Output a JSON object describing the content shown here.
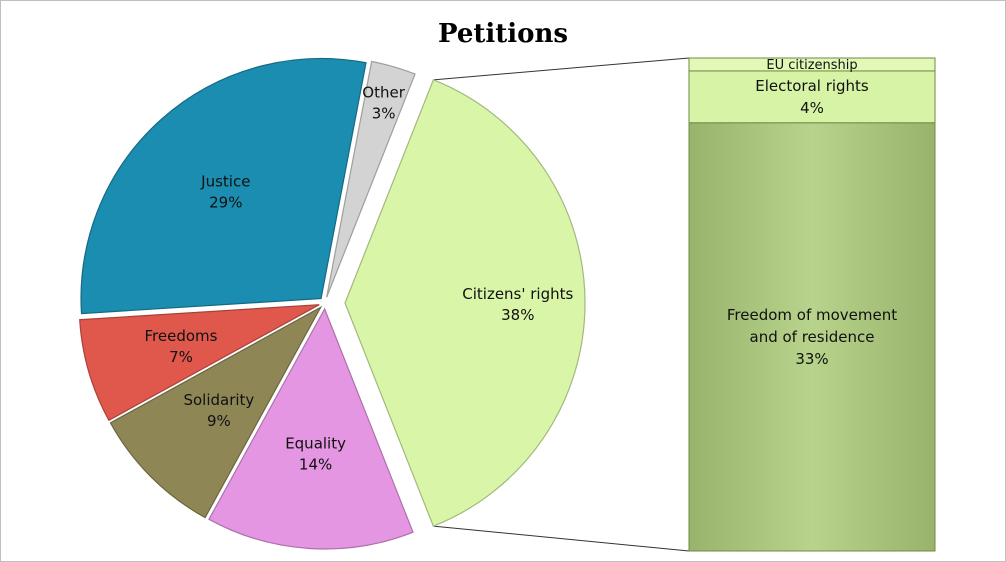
{
  "chart_data": {
    "type": "pie",
    "variant": "bar-of-pie",
    "title": "Petitions",
    "slices": [
      {
        "label": "Citizens' rights",
        "value": 38,
        "value_label": "38%",
        "color": "#d9f5a8",
        "exploded": true
      },
      {
        "label": "Equality",
        "value": 14,
        "value_label": "14%",
        "color": "#e596e3"
      },
      {
        "label": "Solidarity",
        "value": 9,
        "value_label": "9%",
        "color": "#8f8656"
      },
      {
        "label": "Freedoms",
        "value": 7,
        "value_label": "7%",
        "color": "#e0574c"
      },
      {
        "label": "Justice",
        "value": 29,
        "value_label": "29%",
        "color": "#1a8db0"
      },
      {
        "label": "Other",
        "value": 3,
        "value_label": "3%",
        "color": "#d3d3d3"
      }
    ],
    "breakdown_of": "Citizens' rights",
    "breakdown": [
      {
        "label": "EU citizenship",
        "value": 1,
        "value_label": "",
        "color": "#e2f8b6"
      },
      {
        "label": "Electoral rights",
        "value": 4,
        "value_label": "4%",
        "color": "#d6f3a6"
      },
      {
        "label": "Freedom of movement|and of residence",
        "value": 33,
        "value_label": "33%",
        "color": "#a9c57a"
      }
    ]
  }
}
